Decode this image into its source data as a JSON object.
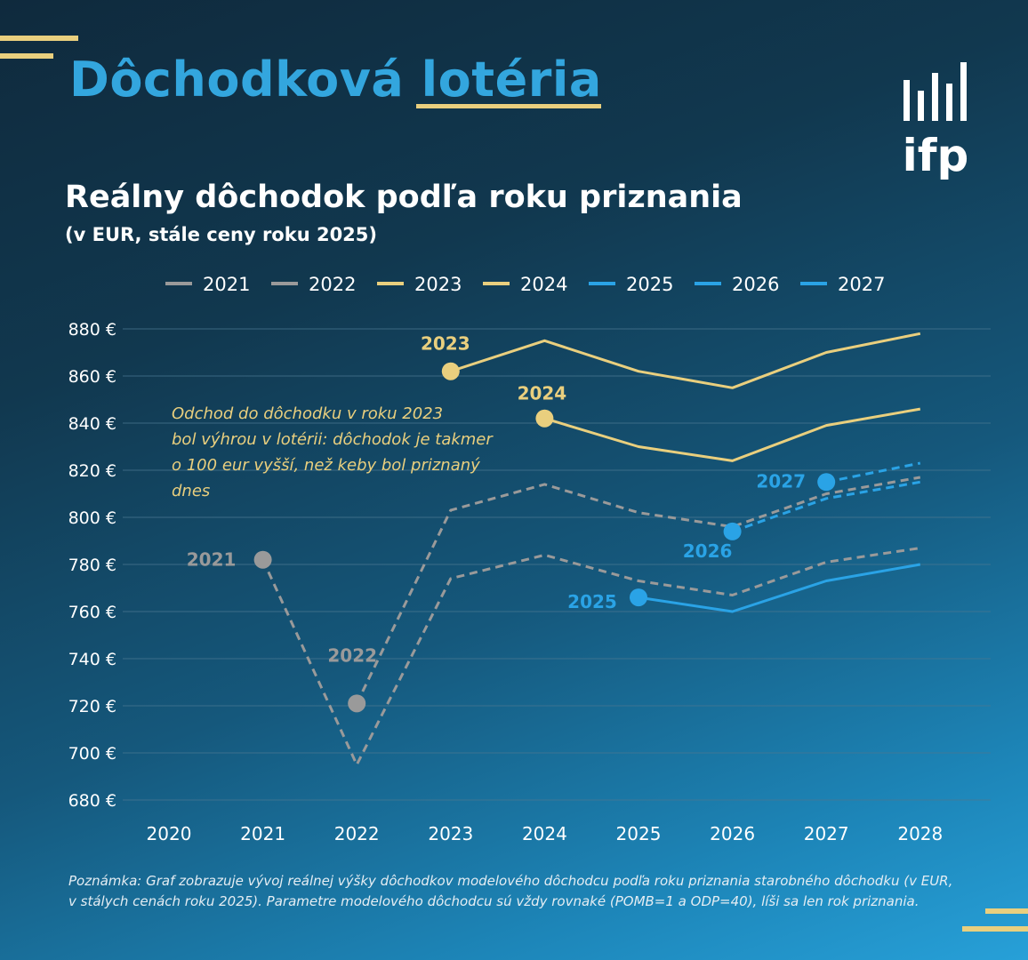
{
  "header": {
    "title_part1": "Dôchodková",
    "title_part2": "lotéria",
    "logo_text": "ifp"
  },
  "chart_data": {
    "type": "line",
    "title": "Reálny dôchodok podľa roku priznania",
    "subtitle": "(v EUR, stále ceny roku 2025)",
    "xlabel": "",
    "ylabel": "",
    "x": [
      2020,
      2021,
      2022,
      2023,
      2024,
      2025,
      2026,
      2027,
      2028
    ],
    "x_tick_labels": [
      "2020",
      "2021",
      "2022",
      "2023",
      "2024",
      "2025",
      "2026",
      "2027",
      "2028"
    ],
    "ylim": [
      680,
      880
    ],
    "y_ticks": [
      680,
      700,
      720,
      740,
      760,
      780,
      800,
      820,
      840,
      860,
      880
    ],
    "y_tick_labels": [
      "680 €",
      "700 €",
      "720 €",
      "740 €",
      "760 €",
      "780 €",
      "800 €",
      "820 €",
      "840 €",
      "860 €",
      "880 €"
    ],
    "grid": true,
    "legend_position": "top",
    "colors": {
      "grey": "#9a9a9a",
      "gold": "#e9cf7e",
      "blue": "#2aa3e6",
      "white": "#ffffff",
      "grid": "#4a7791"
    },
    "series": [
      {
        "name": "2021",
        "color": "#9a9a9a",
        "dashed": true,
        "points": [
          [
            2021,
            782
          ],
          [
            2022,
            695
          ],
          [
            2023,
            774
          ],
          [
            2024,
            784
          ],
          [
            2025,
            773
          ],
          [
            2026,
            767
          ],
          [
            2027,
            781
          ],
          [
            2028,
            787
          ]
        ],
        "marker": {
          "x": 2021,
          "y": 782,
          "label": "2021"
        }
      },
      {
        "name": "2022",
        "color": "#9a9a9a",
        "dashed": true,
        "points": [
          [
            2022,
            721
          ],
          [
            2023,
            803
          ],
          [
            2024,
            814
          ],
          [
            2025,
            802
          ],
          [
            2026,
            796
          ],
          [
            2027,
            810
          ],
          [
            2028,
            817
          ]
        ],
        "marker": {
          "x": 2022,
          "y": 721,
          "label": "2022"
        }
      },
      {
        "name": "2023",
        "color": "#e9cf7e",
        "dashed": false,
        "points": [
          [
            2023,
            862
          ],
          [
            2024,
            875
          ],
          [
            2025,
            862
          ],
          [
            2026,
            855
          ],
          [
            2027,
            870
          ],
          [
            2028,
            878
          ]
        ],
        "marker": {
          "x": 2023,
          "y": 862,
          "label": "2023"
        }
      },
      {
        "name": "2024",
        "color": "#e9cf7e",
        "dashed": false,
        "points": [
          [
            2024,
            842
          ],
          [
            2025,
            830
          ],
          [
            2026,
            824
          ],
          [
            2027,
            839
          ],
          [
            2028,
            846
          ]
        ],
        "marker": {
          "x": 2024,
          "y": 842,
          "label": "2024"
        }
      },
      {
        "name": "2025",
        "color": "#2aa3e6",
        "dashed": false,
        "points": [
          [
            2025,
            766
          ],
          [
            2026,
            760
          ],
          [
            2027,
            773
          ],
          [
            2028,
            780
          ]
        ],
        "marker": {
          "x": 2025,
          "y": 766,
          "label": "2025"
        }
      },
      {
        "name": "2026",
        "color": "#2aa3e6",
        "dashed": true,
        "points": [
          [
            2026,
            794
          ],
          [
            2027,
            808
          ],
          [
            2028,
            815
          ]
        ],
        "marker": {
          "x": 2026,
          "y": 794,
          "label": "2026"
        }
      },
      {
        "name": "2027",
        "color": "#2aa3e6",
        "dashed": true,
        "points": [
          [
            2027,
            815
          ],
          [
            2028,
            823
          ]
        ],
        "marker": {
          "x": 2027,
          "y": 815,
          "label": "2027"
        }
      }
    ],
    "annotation": {
      "lines": [
        "Odchod do dôchodku v roku 2023",
        "bol výhrou v lotérii: dôchodok je takmer",
        "o 100 eur vyšší, než keby bol priznaný",
        "dnes"
      ]
    }
  },
  "footnote": "Poznámka: Graf zobrazuje vývoj reálnej výšky dôchodkov modelového dôchodcu podľa roku priznania starobného dôchodku (v EUR, v stálych cenách roku 2025). Parametre modelového dôchodcu sú vždy rovnaké (POMB=1 a ODP=40), líši sa len rok priznania."
}
